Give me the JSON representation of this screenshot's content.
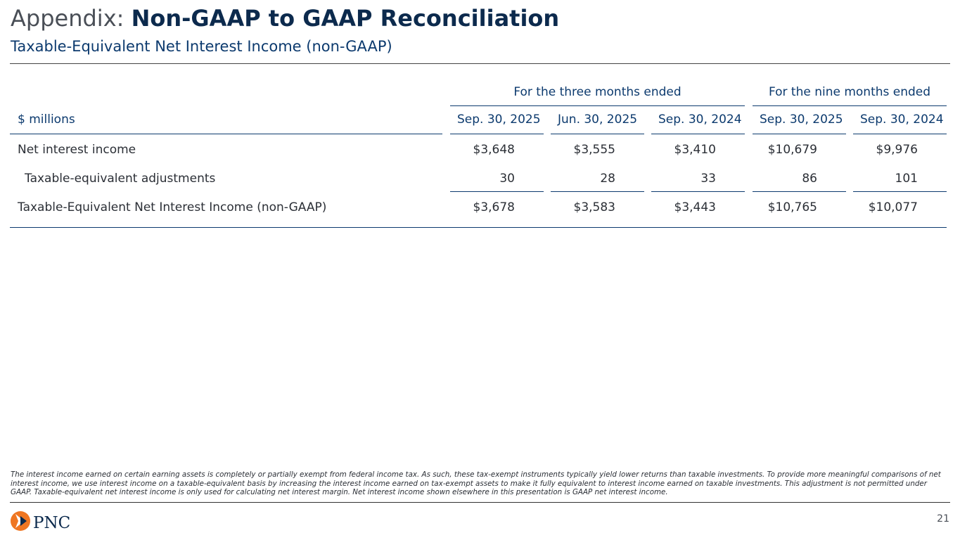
{
  "header": {
    "title_prefix": "Appendix:",
    "title_main": "Non-GAAP to GAAP Reconciliation",
    "subtitle": "Taxable-Equivalent Net Interest Income (non-GAAP)"
  },
  "table": {
    "group_headers": [
      "For the three months ended",
      "For the nine months ended"
    ],
    "unit_label": "$ millions",
    "columns": [
      "Sep. 30, 2025",
      "Jun. 30, 2025",
      "Sep. 30, 2024",
      "Sep. 30, 2025",
      "Sep. 30, 2024"
    ],
    "rows": [
      {
        "label": "Net interest income",
        "values": [
          "$3,648",
          "$3,555",
          "$3,410",
          "$10,679",
          "$9,976"
        ]
      },
      {
        "label": "Taxable-equivalent adjustments",
        "values": [
          "30",
          "28",
          "33",
          "86",
          "101"
        ]
      },
      {
        "label": "Taxable-Equivalent Net Interest Income (non-GAAP)",
        "values": [
          "$3,678",
          "$3,583",
          "$3,443",
          "$10,765",
          "$10,077"
        ]
      }
    ]
  },
  "footnote": "The interest income earned on certain earning assets is completely or partially exempt from federal income tax. As such, these tax-exempt instruments typically yield lower returns than taxable investments. To provide more meaningful comparisons of net interest income, we use interest income on a taxable-equivalent basis by increasing the interest income earned on tax-exempt assets to make it fully equivalent to interest income earned on taxable investments. This adjustment is not permitted under GAAP. Taxable-equivalent net interest income is only used for calculating net interest margin. Net interest income shown elsewhere in this presentation is GAAP net interest income.",
  "footer": {
    "logo_text": "PNC",
    "page_number": "21"
  },
  "colors": {
    "brand_navy": "#0c2a4d",
    "accent_blue": "#0c3a6e",
    "logo_orange": "#ef7622"
  }
}
